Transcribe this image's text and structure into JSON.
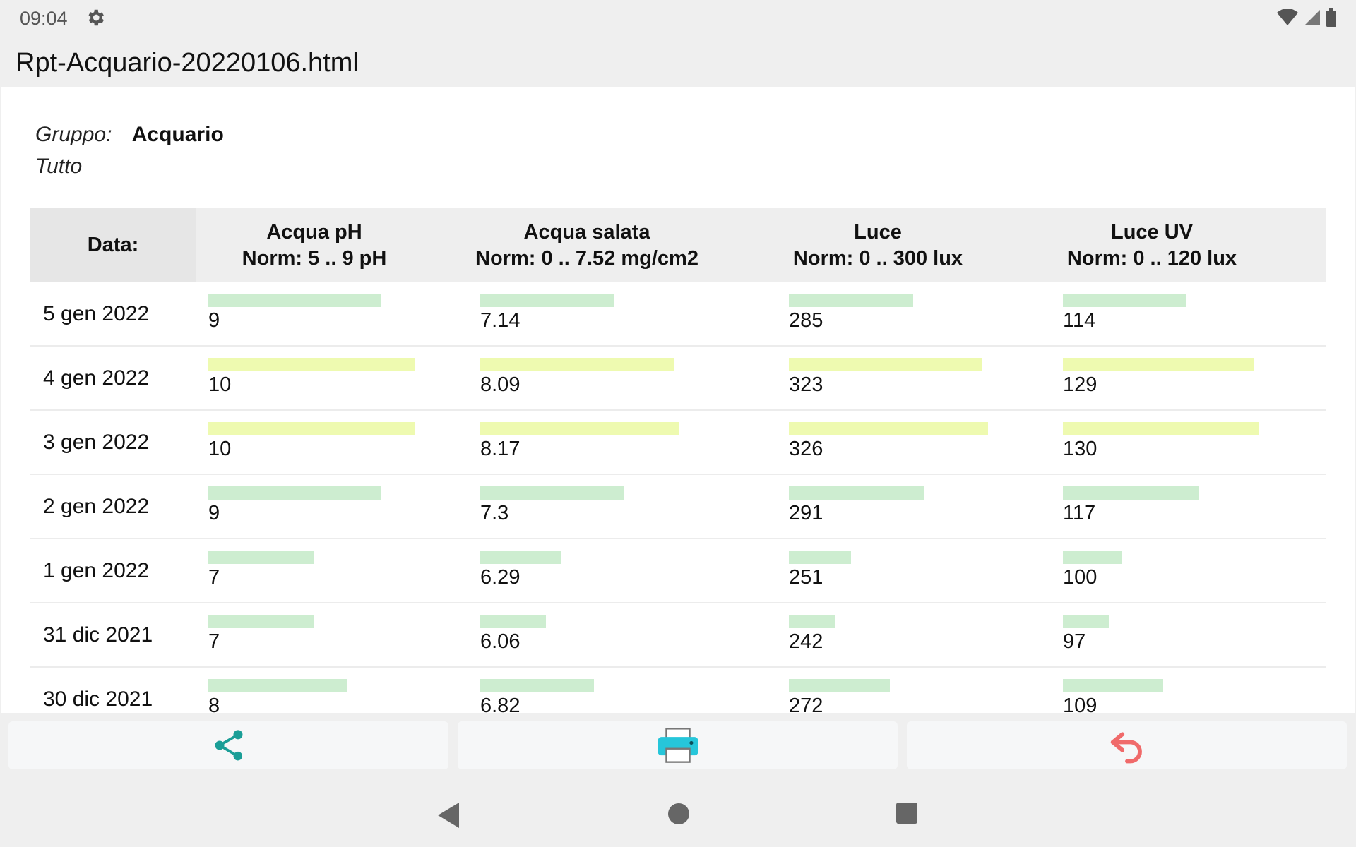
{
  "status": {
    "time": "09:04"
  },
  "title": "Rpt-Acquario-20220106.html",
  "meta": {
    "group_label": "Gruppo:",
    "group_value": "Acquario",
    "filter": "Tutto"
  },
  "table": {
    "headers": {
      "date": "Data:",
      "cols": [
        {
          "name": "Acqua pH",
          "norm": "Norm: 5 .. 9 pH"
        },
        {
          "name": "Acqua salata",
          "norm": "Norm: 0 .. 7.52 mg/cm2"
        },
        {
          "name": "Luce",
          "norm": "Norm: 0 .. 300 lux"
        },
        {
          "name": "Luce UV",
          "norm": "Norm: 0 .. 120 lux"
        }
      ]
    },
    "rows": [
      {
        "date": "5 gen 2022",
        "values": [
          "9",
          "7.14",
          "285",
          "114"
        ],
        "status": [
          "normal",
          "normal",
          "normal",
          "normal"
        ]
      },
      {
        "date": "4 gen 2022",
        "values": [
          "10",
          "8.09",
          "323",
          "129"
        ],
        "status": [
          "high",
          "high",
          "high",
          "high"
        ]
      },
      {
        "date": "3 gen 2022",
        "values": [
          "10",
          "8.17",
          "326",
          "130"
        ],
        "status": [
          "high",
          "high",
          "high",
          "high"
        ]
      },
      {
        "date": "2 gen 2022",
        "values": [
          "9",
          "7.3",
          "291",
          "117"
        ],
        "status": [
          "normal",
          "normal",
          "normal",
          "normal"
        ]
      },
      {
        "date": "1 gen 2022",
        "values": [
          "7",
          "6.29",
          "251",
          "100"
        ],
        "status": [
          "normal",
          "normal",
          "normal",
          "normal"
        ]
      },
      {
        "date": "31 dic 2021",
        "values": [
          "7",
          "6.06",
          "242",
          "97"
        ],
        "status": [
          "normal",
          "normal",
          "normal",
          "normal"
        ]
      },
      {
        "date": "30 dic 2021",
        "values": [
          "8",
          "6.82",
          "272",
          "109"
        ],
        "status": [
          "normal",
          "normal",
          "normal",
          "normal"
        ]
      }
    ]
  },
  "colors": {
    "normal_bar": "#cdedd0",
    "high_bar": "#eefab0",
    "share": "#1a9e97",
    "print": "#26c6da",
    "back": "#f06a6a"
  },
  "icons": {
    "share": "share-icon",
    "print": "printer-icon",
    "back": "undo-arrow-icon"
  }
}
